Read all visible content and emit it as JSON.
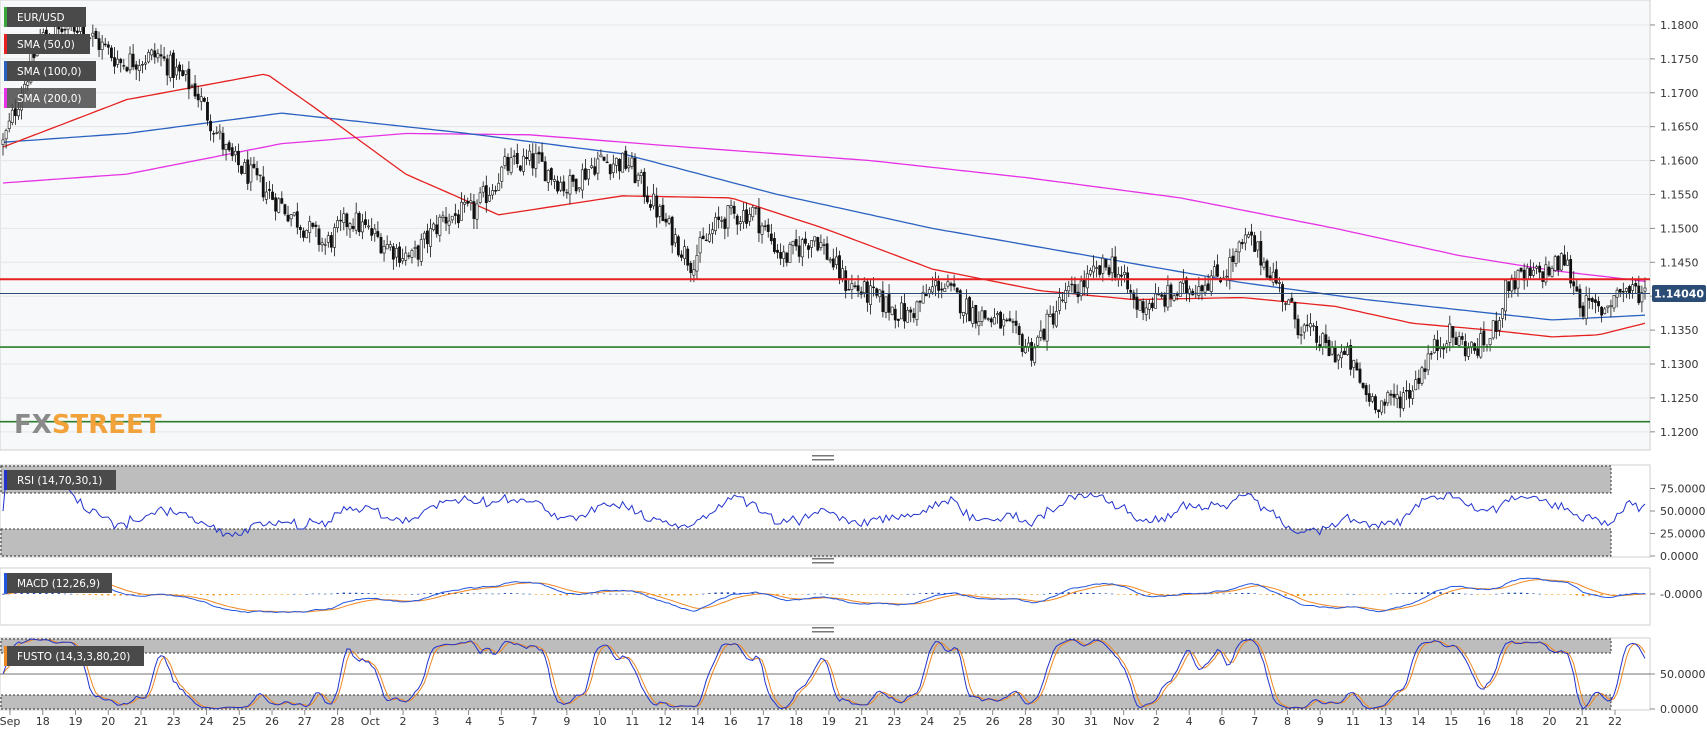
{
  "symbol": "EUR/USD",
  "brand": {
    "part1": "FX",
    "part2": "STREET"
  },
  "colors": {
    "price_line": "#e62020",
    "support_line": "#2a7d2a",
    "current_line": "#2b4d75",
    "sma50": "#e62020",
    "sma100": "#2b62c2",
    "sma200": "#e632e6",
    "rsi": "#2233cc",
    "macd_line": "#2255dd",
    "signal_line": "#ee8822",
    "hist_pos": "#1f4fb0",
    "hist_neg": "#f59a1e",
    "fusto_k": "#2233cc",
    "fusto_d": "#ee8822",
    "brand_gray": "#8a8a8a",
    "brand_orange": "#f2a23a"
  },
  "current_price": "1.14040",
  "chart_data": [
    {
      "type": "candlestick",
      "title": "EUR/USD",
      "ylim": [
        1.1185,
        1.1825
      ],
      "y_ticks": [
        "1.1800",
        "1.1750",
        "1.1700",
        "1.1650",
        "1.1600",
        "1.1550",
        "1.1500",
        "1.1450",
        "1.1400",
        "1.1350",
        "1.1300",
        "1.1250",
        "1.1200"
      ],
      "x_ticks": [
        "Sep",
        "18",
        "19",
        "20",
        "21",
        "23",
        "24",
        "25",
        "26",
        "27",
        "28",
        "Oct",
        "2",
        "3",
        "4",
        "5",
        "7",
        "9",
        "10",
        "11",
        "12",
        "14",
        "16",
        "17",
        "18",
        "19",
        "21",
        "23",
        "24",
        "25",
        "26",
        "28",
        "30",
        "31",
        "Nov",
        "2",
        "4",
        "6",
        "7",
        "8",
        "9",
        "11",
        "13",
        "14",
        "15",
        "16",
        "18",
        "20",
        "21",
        "22"
      ],
      "levels": {
        "resistance": 1.1425,
        "support_1": 1.1325,
        "support_2": 1.1215,
        "current": 1.1404
      },
      "anchors": [
        [
          0,
          1.1625
        ],
        [
          12,
          1.178
        ],
        [
          24,
          1.18
        ],
        [
          38,
          1.1745
        ],
        [
          50,
          1.1755
        ],
        [
          62,
          1.1705
        ],
        [
          73,
          1.1605
        ],
        [
          84,
          1.156
        ],
        [
          92,
          1.1525
        ],
        [
          104,
          1.1475
        ],
        [
          112,
          1.1515
        ],
        [
          124,
          1.1475
        ],
        [
          132,
          1.1455
        ],
        [
          142,
          1.1515
        ],
        [
          152,
          1.1525
        ],
        [
          162,
          1.159
        ],
        [
          172,
          1.16
        ],
        [
          182,
          1.156
        ],
        [
          192,
          1.16
        ],
        [
          202,
          1.1595
        ],
        [
          212,
          1.152
        ],
        [
          222,
          1.145
        ],
        [
          232,
          1.1515
        ],
        [
          242,
          1.1525
        ],
        [
          252,
          1.1455
        ],
        [
          262,
          1.149
        ],
        [
          272,
          1.142
        ],
        [
          282,
          1.1395
        ],
        [
          292,
          1.137
        ],
        [
          302,
          1.142
        ],
        [
          312,
          1.138
        ],
        [
          322,
          1.136
        ],
        [
          332,
          1.132
        ],
        [
          342,
          1.1395
        ],
        [
          352,
          1.143
        ],
        [
          358,
          1.145
        ],
        [
          366,
          1.1385
        ],
        [
          374,
          1.1395
        ],
        [
          384,
          1.1415
        ],
        [
          394,
          1.1435
        ],
        [
          402,
          1.1485
        ],
        [
          410,
          1.143
        ],
        [
          418,
          1.136
        ],
        [
          428,
          1.132
        ],
        [
          434,
          1.131
        ],
        [
          440,
          1.1255
        ],
        [
          446,
          1.124
        ],
        [
          454,
          1.126
        ],
        [
          460,
          1.131
        ],
        [
          466,
          1.1345
        ],
        [
          474,
          1.132
        ],
        [
          480,
          1.1335
        ],
        [
          486,
          1.142
        ],
        [
          494,
          1.143
        ],
        [
          500,
          1.144
        ],
        [
          504,
          1.1455
        ],
        [
          510,
          1.1385
        ],
        [
          516,
          1.138
        ],
        [
          522,
          1.141
        ],
        [
          530,
          1.1405
        ]
      ],
      "n_bars": 531,
      "sma50": [
        [
          0,
          1.162
        ],
        [
          40,
          1.169
        ],
        [
          85,
          1.1728
        ],
        [
          100,
          1.168
        ],
        [
          130,
          1.158
        ],
        [
          160,
          1.152
        ],
        [
          200,
          1.1548
        ],
        [
          235,
          1.1545
        ],
        [
          265,
          1.15
        ],
        [
          300,
          1.144
        ],
        [
          335,
          1.1408
        ],
        [
          365,
          1.1395
        ],
        [
          400,
          1.1398
        ],
        [
          430,
          1.1385
        ],
        [
          455,
          1.136
        ],
        [
          480,
          1.135
        ],
        [
          500,
          1.134
        ],
        [
          515,
          1.1343
        ],
        [
          530,
          1.136
        ]
      ],
      "sma100": [
        [
          0,
          1.1627
        ],
        [
          40,
          1.164
        ],
        [
          90,
          1.167
        ],
        [
          150,
          1.164
        ],
        [
          200,
          1.161
        ],
        [
          250,
          1.155
        ],
        [
          300,
          1.15
        ],
        [
          350,
          1.146
        ],
        [
          400,
          1.142
        ],
        [
          440,
          1.1395
        ],
        [
          470,
          1.138
        ],
        [
          500,
          1.1365
        ],
        [
          530,
          1.1372
        ]
      ],
      "sma200": [
        [
          0,
          1.1567
        ],
        [
          40,
          1.158
        ],
        [
          90,
          1.1625
        ],
        [
          130,
          1.164
        ],
        [
          170,
          1.1638
        ],
        [
          220,
          1.162
        ],
        [
          280,
          1.16
        ],
        [
          330,
          1.1575
        ],
        [
          380,
          1.1545
        ],
        [
          430,
          1.15
        ],
        [
          470,
          1.146
        ],
        [
          500,
          1.1438
        ],
        [
          530,
          1.1422
        ]
      ]
    },
    {
      "type": "line",
      "title": "RSI (14,70,30,1)",
      "ylim": [
        0,
        100
      ],
      "y_ticks": [
        "75.0000",
        "50.0000",
        "25.0000",
        "0.0000"
      ],
      "overbought": 70,
      "oversold": 30
    },
    {
      "type": "bar",
      "title": "MACD (12,26,9)",
      "y_ticks": [
        "-0.0000"
      ]
    },
    {
      "type": "line",
      "title": "FUSTO (14,3,3,80,20)",
      "ylim": [
        0,
        100
      ],
      "y_ticks": [
        "50.0000",
        "0.0000"
      ],
      "overbought": 80,
      "oversold": 20
    }
  ],
  "legend": {
    "symbol": "EUR/USD",
    "sma50": "SMA (50,0)",
    "sma100": "SMA (100,0)",
    "sma200": "SMA (200,0)"
  }
}
